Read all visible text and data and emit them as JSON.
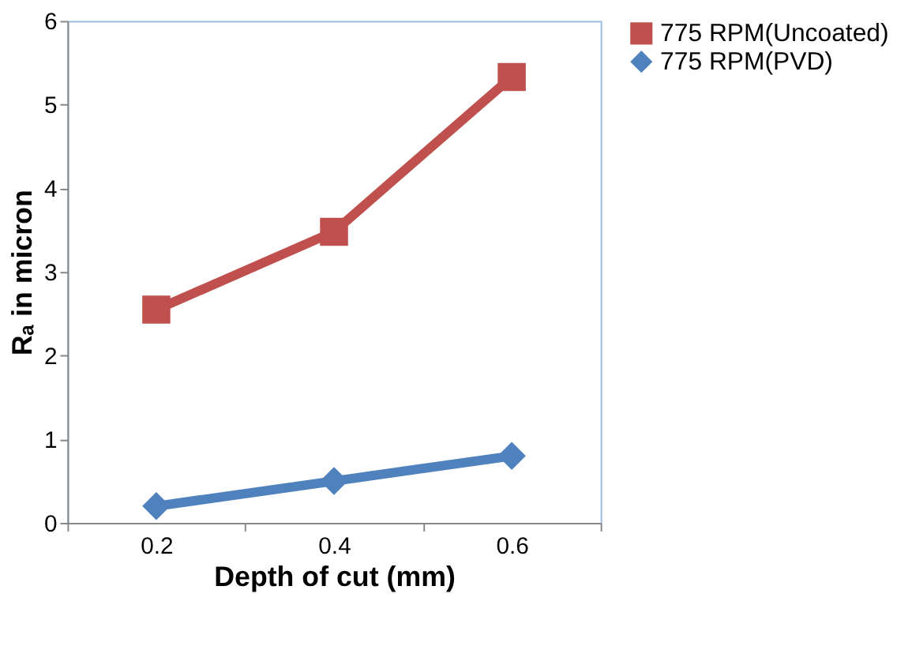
{
  "chart_data": {
    "type": "line",
    "xlabel": "Depth of cut (mm)",
    "ylabel": "Rₐ in micron",
    "categories": [
      "0.2",
      "0.4",
      "0.6"
    ],
    "series": [
      {
        "name": "775 RPM(Uncoated)",
        "color": "#c0504d",
        "marker": "square",
        "values": [
          2.55,
          3.48,
          5.33
        ]
      },
      {
        "name": "775 RPM(PVD)",
        "color": "#4f81bd",
        "marker": "diamond",
        "values": [
          0.2,
          0.5,
          0.8
        ]
      }
    ],
    "ylim": [
      0,
      6
    ],
    "yticks": [
      0,
      1,
      2,
      3,
      4,
      5,
      6
    ],
    "grid": false,
    "legend": "right"
  }
}
